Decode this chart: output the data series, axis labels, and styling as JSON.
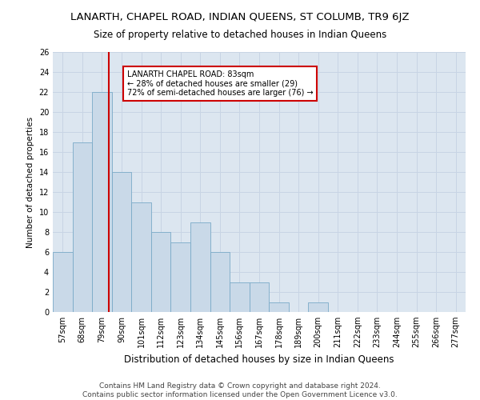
{
  "title": "LANARTH, CHAPEL ROAD, INDIAN QUEENS, ST COLUMB, TR9 6JZ",
  "subtitle": "Size of property relative to detached houses in Indian Queens",
  "xlabel": "Distribution of detached houses by size in Indian Queens",
  "ylabel": "Number of detached properties",
  "categories": [
    "57sqm",
    "68sqm",
    "79sqm",
    "90sqm",
    "101sqm",
    "112sqm",
    "123sqm",
    "134sqm",
    "145sqm",
    "156sqm",
    "167sqm",
    "178sqm",
    "189sqm",
    "200sqm",
    "211sqm",
    "222sqm",
    "233sqm",
    "244sqm",
    "255sqm",
    "266sqm",
    "277sqm"
  ],
  "values": [
    6,
    17,
    22,
    14,
    11,
    8,
    7,
    9,
    6,
    3,
    3,
    1,
    0,
    1,
    0,
    0,
    0,
    0,
    0,
    0,
    0
  ],
  "bar_color": "#c9d9e8",
  "bar_edge_color": "#7aaac8",
  "redline_color": "#cc0000",
  "annotation_line1": "LANARTH CHAPEL ROAD: 83sqm",
  "annotation_line2": "← 28% of detached houses are smaller (29)",
  "annotation_line3": "72% of semi-detached houses are larger (76) →",
  "annotation_box_color": "#ffffff",
  "annotation_box_edge": "#cc0000",
  "ylim": [
    0,
    26
  ],
  "yticks": [
    0,
    2,
    4,
    6,
    8,
    10,
    12,
    14,
    16,
    18,
    20,
    22,
    24,
    26
  ],
  "grid_color": "#c8d4e4",
  "bg_color": "#dce6f0",
  "footer": "Contains HM Land Registry data © Crown copyright and database right 2024.\nContains public sector information licensed under the Open Government Licence v3.0.",
  "title_fontsize": 9.5,
  "subtitle_fontsize": 8.5,
  "xlabel_fontsize": 8.5,
  "ylabel_fontsize": 7.5,
  "tick_fontsize": 7,
  "annotation_fontsize": 7,
  "footer_fontsize": 6.5
}
